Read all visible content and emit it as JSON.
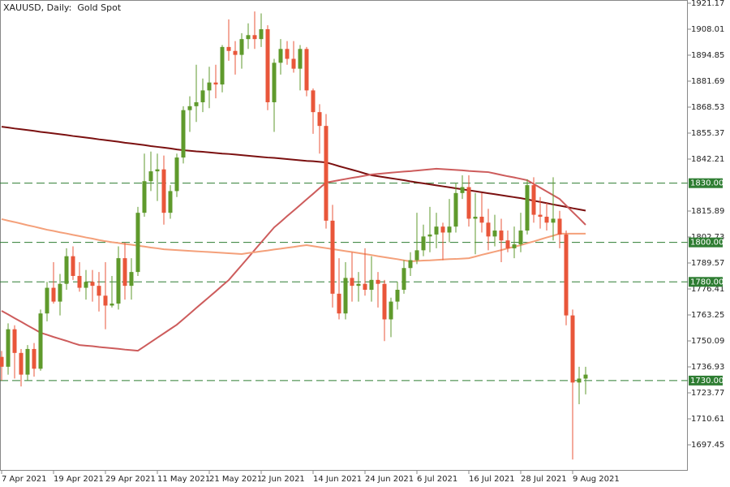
{
  "chart_data": {
    "type": "candlestick",
    "title": "XAUUSD, Daily:  Gold Spot",
    "categories": [
      "7 Apr 2021",
      null,
      null,
      null,
      null,
      null,
      null,
      null,
      "19 Apr 2021",
      null,
      null,
      null,
      null,
      null,
      null,
      null,
      "29 Apr 2021",
      null,
      null,
      null,
      null,
      null,
      null,
      null,
      "11 May 2021",
      null,
      null,
      null,
      null,
      null,
      null,
      null,
      "21 May 2021",
      null,
      null,
      null,
      null,
      null,
      null,
      null,
      "2 Jun 2021",
      null,
      null,
      null,
      null,
      null,
      null,
      null,
      "14 Jun 2021",
      null,
      null,
      null,
      null,
      null,
      null,
      null,
      "24 Jun 2021",
      null,
      null,
      null,
      null,
      null,
      null,
      null,
      "6 Jul 2021",
      null,
      null,
      null,
      null,
      null,
      null,
      null,
      "16 Jul 2021",
      null,
      null,
      null,
      null,
      null,
      null,
      null,
      "28 Jul 2021",
      null,
      null,
      null,
      null,
      null,
      null,
      null,
      "9 Aug 2021",
      null,
      null
    ],
    "open": [
      1742,
      1737,
      1756,
      1744,
      1733,
      1746,
      1736,
      1764,
      1777,
      1770,
      1779,
      1793,
      1783,
      1777,
      1780,
      1778,
      1773,
      1768,
      1769,
      1792,
      1778,
      1785,
      1815,
      1831,
      1836,
      1837,
      1815,
      1826,
      1843,
      1867,
      1869,
      1871,
      1877,
      1881,
      1880,
      1899,
      1897,
      1895,
      1903,
      1905,
      1903,
      1908,
      1871,
      1891,
      1898,
      1893,
      1888,
      1898,
      1877,
      1866,
      1859,
      1811,
      1774,
      1764,
      1782,
      1778,
      1779,
      1776,
      1781,
      1779,
      1761,
      1770,
      1776,
      1787,
      1791,
      1796,
      1803,
      1804,
      1808,
      1805,
      1808,
      1825,
      1828,
      1812,
      1813,
      1810,
      1803,
      1806,
      1801,
      1797,
      1799,
      1806,
      1829,
      1814,
      1813,
      1810,
      1812,
      1804,
      1763,
      1729,
      1731
    ],
    "high": [
      1745,
      1759,
      1758,
      1746,
      1748,
      1749,
      1766,
      1780,
      1790,
      1784,
      1797,
      1798,
      1790,
      1786,
      1786,
      1785,
      1790,
      1783,
      1798,
      1800,
      1792,
      1818,
      1845,
      1846,
      1845,
      1844,
      1829,
      1845,
      1869,
      1874,
      1890,
      1883,
      1889,
      1890,
      1900,
      1913,
      1902,
      1906,
      1911,
      1917,
      1916,
      1910,
      1893,
      1903,
      1902,
      1902,
      1900,
      1899,
      1878,
      1870,
      1865,
      1819,
      1792,
      1790,
      1795,
      1785,
      1797,
      1793,
      1785,
      1781,
      1772,
      1780,
      1791,
      1795,
      1815,
      1809,
      1818,
      1815,
      1810,
      1822,
      1830,
      1834,
      1834,
      1825,
      1825,
      1817,
      1814,
      1812,
      1806,
      1808,
      1815,
      1832,
      1833,
      1823,
      1820,
      1833,
      1816,
      1806,
      1766,
      1737,
      1737
    ],
    "low": [
      1730,
      1733,
      1731,
      1727,
      1730,
      1732,
      1735,
      1760,
      1769,
      1763,
      1776,
      1781,
      1775,
      1771,
      1770,
      1765,
      1756,
      1767,
      1766,
      1771,
      1771,
      1783,
      1813,
      1826,
      1821,
      1809,
      1812,
      1823,
      1840,
      1856,
      1861,
      1866,
      1868,
      1873,
      1876,
      1892,
      1885,
      1888,
      1898,
      1898,
      1899,
      1867,
      1856,
      1885,
      1890,
      1886,
      1877,
      1874,
      1855,
      1845,
      1807,
      1767,
      1761,
      1761,
      1770,
      1770,
      1773,
      1770,
      1767,
      1750,
      1752,
      1766,
      1774,
      1783,
      1789,
      1793,
      1795,
      1797,
      1791,
      1800,
      1805,
      1822,
      1808,
      1794,
      1805,
      1796,
      1798,
      1790,
      1795,
      1792,
      1795,
      1804,
      1810,
      1807,
      1806,
      1801,
      1797,
      1758,
      1690,
      1718,
      1723
    ],
    "close": [
      1737,
      1756,
      1744,
      1733,
      1746,
      1736,
      1764,
      1777,
      1770,
      1779,
      1793,
      1783,
      1777,
      1780,
      1778,
      1773,
      1768,
      1769,
      1792,
      1778,
      1785,
      1815,
      1831,
      1836,
      1837,
      1815,
      1826,
      1843,
      1867,
      1869,
      1871,
      1877,
      1881,
      1880,
      1899,
      1897,
      1895,
      1903,
      1905,
      1903,
      1908,
      1871,
      1891,
      1898,
      1893,
      1888,
      1898,
      1877,
      1866,
      1859,
      1811,
      1774,
      1764,
      1782,
      1778,
      1779,
      1776,
      1781,
      1779,
      1761,
      1770,
      1776,
      1787,
      1791,
      1796,
      1803,
      1804,
      1808,
      1805,
      1808,
      1825,
      1828,
      1812,
      1813,
      1810,
      1803,
      1806,
      1801,
      1797,
      1799,
      1806,
      1829,
      1814,
      1813,
      1810,
      1812,
      1804,
      1763,
      1729,
      1731,
      1733
    ],
    "up_color": "#5f9a2c",
    "down_color": "#e9563a",
    "lines": [
      {
        "color": "#7b1010",
        "values": [
          1858.6,
          1858.2,
          1857.7,
          1857.3,
          1856.9,
          1856.5,
          1856.0,
          1855.6,
          1855.2,
          1854.8,
          1854.4,
          1853.9,
          1853.5,
          1853.1,
          1852.7,
          1852.2,
          1851.8,
          1851.4,
          1851.0,
          1850.5,
          1850.1,
          1849.7,
          1849.3,
          1848.8,
          1848.4,
          1848.0,
          1847.6,
          1847.1,
          1846.7,
          1846.4,
          1846.1,
          1845.9,
          1845.6,
          1845.3,
          1845.0,
          1844.8,
          1844.5,
          1844.2,
          1843.9,
          1843.6,
          1843.3,
          1843.0,
          1842.8,
          1842.5,
          1842.2,
          1841.9,
          1841.6,
          1841.3,
          1841.1,
          1840.8,
          1840.5,
          1839.6,
          1838.6,
          1837.7,
          1836.8,
          1835.9,
          1834.9,
          1834.0,
          1833.5,
          1833.0,
          1832.5,
          1832.0,
          1831.5,
          1830.9,
          1830.4,
          1829.9,
          1829.4,
          1828.9,
          1828.4,
          1827.9,
          1827.4,
          1826.9,
          1826.4,
          1825.9,
          1825.4,
          1824.9,
          1824.4,
          1823.9,
          1823.4,
          1822.9,
          1822.4,
          1821.8,
          1821.1,
          1820.5,
          1819.9,
          1819.2,
          1818.6,
          1818.0,
          1817.3,
          1816.7,
          1816.1
        ]
      },
      {
        "color": "#cd5c5c",
        "values": [
          1765.3,
          1763.5,
          1761.6,
          1759.8,
          1757.9,
          1756.1,
          1754.2,
          1753.2,
          1752.1,
          1751.1,
          1750.1,
          1749.0,
          1748.0,
          1747.7,
          1747.4,
          1747.0,
          1746.7,
          1746.4,
          1746.1,
          1745.7,
          1745.4,
          1745.1,
          1747.3,
          1749.5,
          1751.7,
          1753.9,
          1756.1,
          1758.3,
          1761.1,
          1763.9,
          1766.8,
          1769.6,
          1772.4,
          1775.2,
          1778.1,
          1780.9,
          1784.7,
          1788.5,
          1792.3,
          1796.2,
          1800.0,
          1803.8,
          1807.6,
          1810.4,
          1813.3,
          1816.1,
          1818.9,
          1821.8,
          1824.6,
          1827.5,
          1830.3,
          1830.9,
          1831.5,
          1832.1,
          1832.7,
          1833.2,
          1833.8,
          1834.4,
          1834.7,
          1835.0,
          1835.3,
          1835.6,
          1835.9,
          1836.1,
          1836.4,
          1836.7,
          1837.0,
          1837.3,
          1837.1,
          1836.9,
          1836.7,
          1836.5,
          1836.2,
          1836.0,
          1835.8,
          1835.6,
          1834.9,
          1834.2,
          1833.5,
          1832.9,
          1832.2,
          1831.5,
          1829.6,
          1827.7,
          1825.8,
          1823.9,
          1822.0,
          1818.7,
          1815.4,
          1812.2,
          1808.9
        ]
      },
      {
        "color": "#f4a07a",
        "values": [
          1811.8,
          1811.0,
          1810.3,
          1809.5,
          1808.7,
          1808.0,
          1807.2,
          1806.4,
          1805.8,
          1805.1,
          1804.5,
          1803.8,
          1803.2,
          1802.5,
          1801.9,
          1801.2,
          1800.6,
          1800.1,
          1799.7,
          1799.2,
          1798.8,
          1798.3,
          1797.9,
          1797.4,
          1797.0,
          1796.5,
          1796.3,
          1796.1,
          1795.9,
          1795.7,
          1795.5,
          1795.3,
          1795.1,
          1794.9,
          1794.7,
          1794.5,
          1794.3,
          1794.1,
          1794.6,
          1795.0,
          1795.5,
          1795.9,
          1796.4,
          1796.8,
          1797.3,
          1797.7,
          1798.2,
          1798.6,
          1798.1,
          1797.6,
          1797.1,
          1796.6,
          1796.1,
          1795.6,
          1795.1,
          1794.6,
          1794.1,
          1793.6,
          1793.0,
          1792.5,
          1792.0,
          1791.5,
          1790.9,
          1790.4,
          1790.6,
          1790.8,
          1790.9,
          1791.1,
          1791.3,
          1791.5,
          1791.6,
          1791.8,
          1792.0,
          1792.8,
          1793.7,
          1794.5,
          1795.3,
          1796.1,
          1797.0,
          1797.8,
          1798.6,
          1799.6,
          1800.5,
          1801.5,
          1802.5,
          1803.4,
          1804.4,
          1804.4,
          1804.4,
          1804.4,
          1804.4
        ]
      }
    ],
    "levels": [
      {
        "value": 1830,
        "label": "1830.00"
      },
      {
        "value": 1800,
        "label": "1800.00"
      },
      {
        "value": 1780,
        "label": "1780.00"
      },
      {
        "value": 1730,
        "label": "1730.00"
      }
    ],
    "level_color": "#2e7d32",
    "ylim": [
      1684.3,
      1922.8
    ],
    "yticks": [
      1697.45,
      1710.61,
      1723.77,
      1736.93,
      1750.09,
      1763.25,
      1776.41,
      1789.57,
      1802.73,
      1815.89,
      1842.21,
      1855.37,
      1868.53,
      1881.69,
      1894.85,
      1908.01,
      1921.17
    ],
    "grid": false
  }
}
